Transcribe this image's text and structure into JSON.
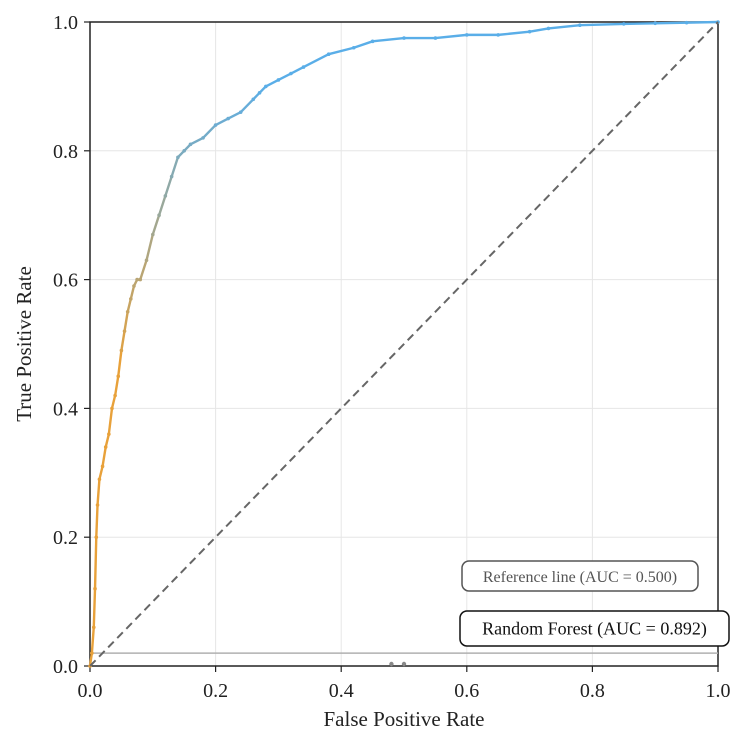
{
  "chart_data": {
    "type": "line",
    "xlabel": "False Positive Rate",
    "ylabel": "True Positive Rate",
    "xlim": [
      0.0,
      1.0
    ],
    "ylim": [
      0.0,
      1.0
    ],
    "x_ticks": [
      "0.0",
      "0.2",
      "0.4",
      "0.6",
      "0.8",
      "1.0"
    ],
    "y_ticks": [
      "0.0",
      "0.2",
      "0.4",
      "0.6",
      "0.8",
      "1.0"
    ],
    "grid": true,
    "legend_position": "bottom-right",
    "series": [
      {
        "name": "Random Forest (AUC = 0.892)",
        "line_style": "solid",
        "color_low_threshold": "#e8a13a",
        "color_high_threshold": "#5aaee8",
        "x": [
          0.0,
          0.003,
          0.006,
          0.008,
          0.01,
          0.012,
          0.015,
          0.02,
          0.025,
          0.03,
          0.035,
          0.04,
          0.045,
          0.05,
          0.055,
          0.06,
          0.065,
          0.07,
          0.075,
          0.08,
          0.09,
          0.1,
          0.11,
          0.12,
          0.13,
          0.14,
          0.15,
          0.16,
          0.18,
          0.2,
          0.22,
          0.24,
          0.26,
          0.27,
          0.28,
          0.3,
          0.32,
          0.34,
          0.38,
          0.42,
          0.45,
          0.5,
          0.55,
          0.6,
          0.65,
          0.7,
          0.73,
          0.78,
          0.85,
          0.9,
          0.95,
          1.0
        ],
        "y": [
          0.0,
          0.02,
          0.06,
          0.12,
          0.2,
          0.25,
          0.29,
          0.31,
          0.34,
          0.36,
          0.4,
          0.42,
          0.45,
          0.49,
          0.52,
          0.55,
          0.57,
          0.59,
          0.6,
          0.6,
          0.63,
          0.67,
          0.7,
          0.73,
          0.76,
          0.79,
          0.8,
          0.81,
          0.82,
          0.84,
          0.85,
          0.86,
          0.88,
          0.89,
          0.9,
          0.91,
          0.92,
          0.93,
          0.95,
          0.96,
          0.97,
          0.975,
          0.975,
          0.98,
          0.98,
          0.985,
          0.99,
          0.995,
          0.997,
          0.998,
          0.999,
          1.0
        ]
      },
      {
        "name": "Reference line (AUC = 0.500)",
        "line_style": "dashed",
        "color": "#666666",
        "x": [
          0.0,
          1.0
        ],
        "y": [
          0.0,
          1.0
        ]
      }
    ],
    "baseline": {
      "y": 0.02,
      "color": "#b0b0b0"
    },
    "baseline_markers_x": [
      0.48,
      0.5
    ]
  }
}
